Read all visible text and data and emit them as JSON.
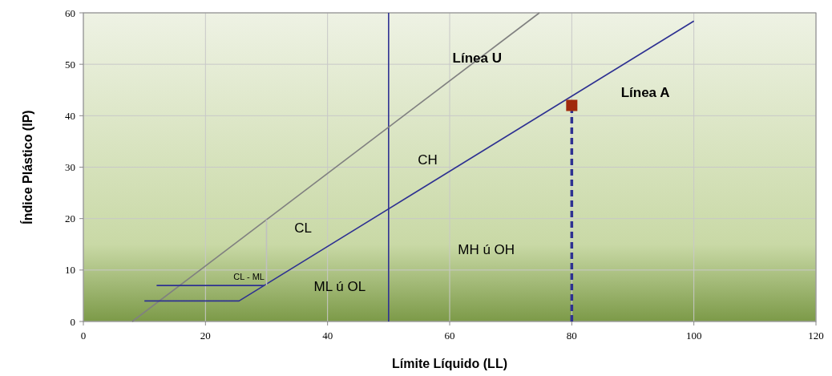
{
  "chart_data": {
    "type": "line",
    "xlabel": "Límite Líquido (LL)",
    "ylabel": "Índice Plástico (IP)",
    "xlim": [
      0,
      120
    ],
    "ylim": [
      0,
      60
    ],
    "xticks": [
      0,
      20,
      40,
      60,
      80,
      100,
      120
    ],
    "yticks": [
      0,
      10,
      20,
      30,
      40,
      50,
      60
    ],
    "grid": true,
    "series": [
      {
        "color": "#808080",
        "x": [
          8,
          74.7
        ],
        "values": [
          0,
          60
        ],
        "line_style": "solid",
        "marker": "none"
      },
      {
        "color": "#2e3192",
        "x": [
          10,
          25.5,
          100
        ],
        "values": [
          4,
          4,
          58.4
        ],
        "line_style": "solid",
        "marker": "none"
      },
      {
        "color": "#2e3192",
        "x": [
          12,
          29.6
        ],
        "values": [
          7,
          7
        ],
        "line_style": "solid",
        "marker": "none"
      },
      {
        "color": "#c0c0c0",
        "x": [
          30,
          30
        ],
        "values": [
          7,
          19.8
        ],
        "line_style": "solid",
        "marker": "none"
      },
      {
        "color": "#2e3192",
        "x": [
          80,
          80
        ],
        "values": [
          0,
          42
        ],
        "line_style": "dashed",
        "marker": "none"
      },
      {
        "type": "scatter",
        "color": "#a0290c",
        "x": [
          80
        ],
        "values": [
          42
        ],
        "marker": "square"
      }
    ],
    "ref_lines": [
      {
        "axis": "x",
        "value": 50,
        "color": "#2e3192"
      }
    ],
    "annotations": [
      {
        "text": "Línea U",
        "x": 64.5,
        "y": 51
      },
      "Línea A",
      "CH",
      "CL",
      "CL - ML",
      "ML ú OL",
      "MH ú OH"
    ]
  }
}
